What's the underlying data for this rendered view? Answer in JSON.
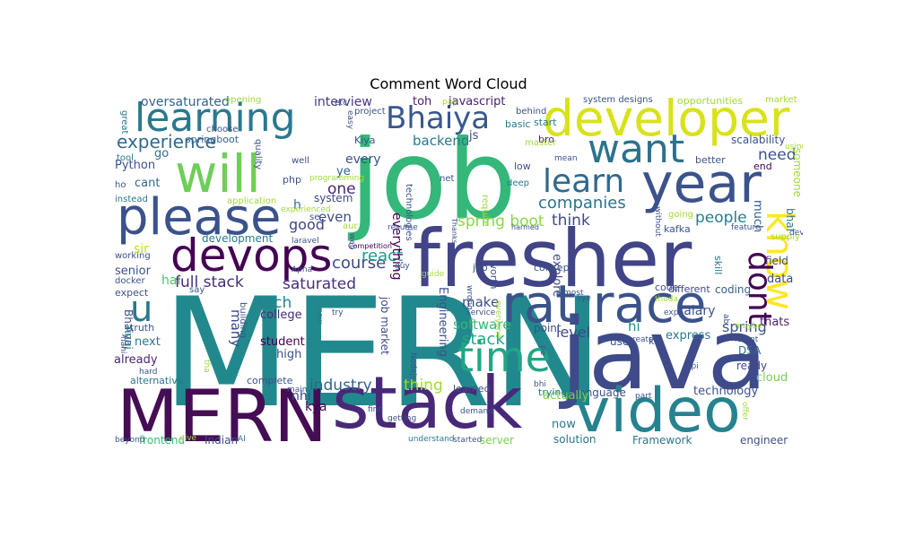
{
  "title": "Comment Word Cloud",
  "words": [
    {
      "text": "MERN",
      "color": "#21898d"
    },
    {
      "text": "job",
      "color": "#35b779"
    },
    {
      "text": "fresher",
      "color": "#414487"
    },
    {
      "text": "java",
      "color": "#3e4a89"
    },
    {
      "text": "stack",
      "color": "#482878"
    },
    {
      "text": "MERN",
      "color": "#440d54"
    },
    {
      "text": "video",
      "color": "#26828e"
    },
    {
      "text": "rat race",
      "color": "#3b528b"
    },
    {
      "text": "year",
      "color": "#3b528b"
    },
    {
      "text": "developer",
      "color": "#d8e219"
    },
    {
      "text": "will",
      "color": "#6ece58"
    },
    {
      "text": "please",
      "color": "#3b528b"
    },
    {
      "text": "devops",
      "color": "#440154"
    },
    {
      "text": "learning",
      "color": "#2a788e"
    },
    {
      "text": "time",
      "color": "#21a685"
    },
    {
      "text": "know",
      "color": "#fde725"
    },
    {
      "text": "dont",
      "color": "#440154"
    },
    {
      "text": "want",
      "color": "#2c728e"
    },
    {
      "text": "Bhaiya",
      "color": "#38588c"
    },
    {
      "text": "learn",
      "color": "#31688e"
    },
    {
      "text": "u",
      "color": "#2a788e"
    },
    {
      "text": "companies",
      "color": "#2c728e"
    },
    {
      "text": "experience",
      "color": "#31688e"
    },
    {
      "text": "course",
      "color": "#3e4989"
    },
    {
      "text": "react",
      "color": "#1f9e89"
    },
    {
      "text": "spring boot",
      "color": "#89d548"
    },
    {
      "text": "full stack",
      "color": "#472d7b"
    },
    {
      "text": "saturated",
      "color": "#472f7d"
    },
    {
      "text": "people",
      "color": "#287c8e"
    },
    {
      "text": "think",
      "color": "#3e4a89"
    },
    {
      "text": "one",
      "color": "#482475"
    },
    {
      "text": "good",
      "color": "#404688"
    },
    {
      "text": "need",
      "color": "#3b528b"
    },
    {
      "text": "tech",
      "color": "#26818e"
    },
    {
      "text": "stack",
      "color": "#22a884"
    },
    {
      "text": "industry",
      "color": "#33638d"
    },
    {
      "text": "thing",
      "color": "#a2da37"
    },
    {
      "text": "level",
      "color": "#3f4788"
    },
    {
      "text": "spring",
      "color": "#3b528b"
    },
    {
      "text": "hi",
      "color": "#23888e"
    },
    {
      "text": "software",
      "color": "#35b779"
    },
    {
      "text": "make",
      "color": "#3e4c8a"
    },
    {
      "text": "backend",
      "color": "#2a788e"
    },
    {
      "text": "interview",
      "color": "#443983"
    },
    {
      "text": "oversaturated",
      "color": "#33638d"
    },
    {
      "text": "javascript",
      "color": "#482374"
    },
    {
      "text": "toh",
      "color": "#481d6f"
    },
    {
      "text": "js",
      "color": "#3f4889"
    },
    {
      "text": "Python",
      "color": "#3b528b"
    },
    {
      "text": "go",
      "color": "#2e6e8e"
    },
    {
      "text": "cant",
      "color": "#31688e"
    },
    {
      "text": "many",
      "color": "#3e4a89"
    },
    {
      "text": "sir",
      "color": "#c2df23"
    },
    {
      "text": "hai",
      "color": "#4ec36b"
    },
    {
      "text": "senior",
      "color": "#3b528b"
    },
    {
      "text": "already",
      "color": "#482576"
    },
    {
      "text": "next",
      "color": "#2a788e"
    },
    {
      "text": "student",
      "color": "#440154"
    },
    {
      "text": "college",
      "color": "#472a7a"
    },
    {
      "text": "high",
      "color": "#3b528b"
    },
    {
      "text": "kya",
      "color": "#440154"
    },
    {
      "text": "nhi",
      "color": "#3e4a89"
    },
    {
      "text": "now",
      "color": "#2a778e"
    },
    {
      "text": "solution",
      "color": "#2a768e"
    },
    {
      "text": "technology",
      "color": "#3b528b"
    },
    {
      "text": "cloud",
      "color": "#7ad151"
    },
    {
      "text": "salary",
      "color": "#3b528b"
    },
    {
      "text": "data",
      "color": "#3e4a89"
    },
    {
      "text": "thats",
      "color": "#482374"
    },
    {
      "text": "DSA",
      "color": "#31688e"
    },
    {
      "text": "express",
      "color": "#2a788e"
    },
    {
      "text": "ready",
      "color": "#3e4a89"
    },
    {
      "text": "coding",
      "color": "#33638d"
    },
    {
      "text": "field",
      "color": "#3f4889"
    },
    {
      "text": "much",
      "color": "#33638d"
    },
    {
      "text": "bhai",
      "color": "#2a788e"
    },
    {
      "text": "everything",
      "color": "#440154"
    },
    {
      "text": "even",
      "color": "#3e4a89"
    },
    {
      "text": "every",
      "color": "#3b528b"
    },
    {
      "text": "ye",
      "color": "#33638d"
    },
    {
      "text": "h",
      "color": "#2c728e"
    },
    {
      "text": "development",
      "color": "#2a788e"
    },
    {
      "text": "explore",
      "color": "#3e4a89"
    },
    {
      "text": "Engineering",
      "color": "#3b528b"
    },
    {
      "text": "job market",
      "color": "#3e4a89"
    },
    {
      "text": "Bhaiya",
      "color": "#3b528b"
    },
    {
      "text": "Anuj",
      "color": "#2a788e"
    },
    {
      "text": "language",
      "color": "#3b528b"
    },
    {
      "text": "Framework",
      "color": "#2a788e"
    },
    {
      "text": "frontend",
      "color": "#3dbc74"
    },
    {
      "text": "Indian",
      "color": "#3e4a89"
    },
    {
      "text": "server",
      "color": "#7ad151"
    },
    {
      "text": "engineer",
      "color": "#3b528b"
    },
    {
      "text": "end",
      "color": "#440154"
    },
    {
      "text": "better",
      "color": "#3b528b"
    },
    {
      "text": "scalability",
      "color": "#3b528b"
    },
    {
      "text": "someone",
      "color": "#a2da37"
    },
    {
      "text": "system",
      "color": "#3e4a89"
    },
    {
      "text": "Kiya",
      "color": "#3b528b"
    },
    {
      "text": "springboot",
      "color": "#33638d"
    },
    {
      "text": "php",
      "color": "#3b528b"
    },
    {
      "text": "basic",
      "color": "#2a788e"
    },
    {
      "text": "bro",
      "color": "#482374"
    },
    {
      "text": "start",
      "color": "#2a788e"
    },
    {
      "text": "low",
      "color": "#3b528b"
    },
    {
      "text": "kafka",
      "color": "#3b528b"
    },
    {
      "text": "skill",
      "color": "#2c728e"
    },
    {
      "text": "code",
      "color": "#3b528b"
    },
    {
      "text": "different",
      "color": "#3e4a89"
    },
    {
      "text": "concept",
      "color": "#3b528b"
    },
    {
      "text": "worth",
      "color": "#3b528b"
    },
    {
      "text": "jab",
      "color": "#3b528b"
    },
    {
      "text": "point",
      "color": "#3b528b"
    },
    {
      "text": "use",
      "color": "#3b528b"
    },
    {
      "text": "ko",
      "color": "#3b528b"
    },
    {
      "text": "actually",
      "color": "#7ad151"
    },
    {
      "text": "learned",
      "color": "#3b528b"
    },
    {
      "text": "trying",
      "color": "#2a788e"
    },
    {
      "text": "complete",
      "color": "#3b528b"
    },
    {
      "text": "alternative",
      "color": "#2a788e"
    },
    {
      "text": "truth",
      "color": "#3b528b"
    },
    {
      "text": "expect",
      "color": "#3b528b"
    },
    {
      "text": "opportunities",
      "color": "#a2da37"
    },
    {
      "text": "system designs",
      "color": "#3b528b"
    },
    {
      "text": "market",
      "color": "#a2da37"
    },
    {
      "text": "opening",
      "color": "#a2da37"
    },
    {
      "text": "project",
      "color": "#3b528b"
    },
    {
      "text": "behind",
      "color": "#3b528b"
    },
    {
      "text": "master",
      "color": "#a2da37"
    },
    {
      "text": "mean",
      "color": "#3b528b"
    },
    {
      "text": "quality",
      "color": "#3b528b"
    },
    {
      "text": "choose",
      "color": "#3b528b"
    },
    {
      "text": "tool",
      "color": "#2a788e"
    },
    {
      "text": "great",
      "color": "#2a788e"
    },
    {
      "text": "ho",
      "color": "#3b528b"
    },
    {
      "text": "instead",
      "color": "#2a788e"
    },
    {
      "text": "application",
      "color": "#a2da37"
    },
    {
      "text": "programming",
      "color": "#a2da37"
    },
    {
      "text": "well",
      "color": "#3b528b"
    },
    {
      "text": "net",
      "color": "#3b528b"
    },
    {
      "text": "deep",
      "color": "#2a788e"
    },
    {
      "text": "require",
      "color": "#a2da37"
    },
    {
      "text": "technologies",
      "color": "#3b528b"
    },
    {
      "text": "aur",
      "color": "#a2da37"
    },
    {
      "text": "se",
      "color": "#3b528b"
    },
    {
      "text": "laravel",
      "color": "#3b528b"
    },
    {
      "text": "resume",
      "color": "#3b528b"
    },
    {
      "text": "Competition",
      "color": "#440154"
    },
    {
      "text": "Thanks",
      "color": "#3b528b"
    },
    {
      "text": "harmed",
      "color": "#3b528b"
    },
    {
      "text": "going",
      "color": "#a2da37"
    },
    {
      "text": "feature",
      "color": "#3b528b"
    },
    {
      "text": "supply",
      "color": "#a2da37"
    },
    {
      "text": "working",
      "color": "#3b528b"
    },
    {
      "text": "docker",
      "color": "#3b528b"
    },
    {
      "text": "say",
      "color": "#3b528b"
    },
    {
      "text": "building",
      "color": "#3b528b"
    },
    {
      "text": "Apna",
      "color": "#3b528b"
    },
    {
      "text": "guy",
      "color": "#3b528b"
    },
    {
      "text": "guide",
      "color": "#a2da37"
    },
    {
      "text": "wrong",
      "color": "#3b528b"
    },
    {
      "text": "service",
      "color": "#3b528b"
    },
    {
      "text": "try",
      "color": "#3b528b"
    },
    {
      "text": "new",
      "color": "#2a788e"
    },
    {
      "text": "almost",
      "color": "#3b528b"
    },
    {
      "text": "liye",
      "color": "#3b528b"
    },
    {
      "text": "thoda",
      "color": "#a2da37"
    },
    {
      "text": "exp",
      "color": "#3b528b"
    },
    {
      "text": "create",
      "color": "#3b528b"
    },
    {
      "text": "learnt",
      "color": "#3b528b"
    },
    {
      "text": "maybe",
      "color": "#a2da37"
    },
    {
      "text": "ab",
      "color": "#3b528b"
    },
    {
      "text": "api",
      "color": "#3b528b"
    },
    {
      "text": "part",
      "color": "#3b528b"
    },
    {
      "text": "offer",
      "color": "#a2da37"
    },
    {
      "text": "Nodejs",
      "color": "#3b528b"
    },
    {
      "text": "main",
      "color": "#3b528b"
    },
    {
      "text": "find",
      "color": "#3b528b"
    },
    {
      "text": "getting",
      "color": "#3b528b"
    },
    {
      "text": "demand",
      "color": "#3b528b"
    },
    {
      "text": "understand",
      "color": "#2a788e"
    },
    {
      "text": "started",
      "color": "#3b528b"
    },
    {
      "text": "AI",
      "color": "#2a788e"
    },
    {
      "text": "beyond",
      "color": "#3b528b"
    },
    {
      "text": "give",
      "color": "#a2da37"
    },
    {
      "text": "tha",
      "color": "#a2da37"
    },
    {
      "text": "hard",
      "color": "#3b528b"
    },
    {
      "text": "using",
      "color": "#a2da37"
    },
    {
      "text": "dev",
      "color": "#3b528b"
    },
    {
      "text": "etc",
      "color": "#3b528b"
    },
    {
      "text": "easy",
      "color": "#3b528b"
    },
    {
      "text": "experienced",
      "color": "#a2da37"
    },
    {
      "text": "everyone",
      "color": "#a2da37"
    },
    {
      "text": "pe",
      "color": "#3b528b"
    },
    {
      "text": "bhi",
      "color": "#3b528b"
    },
    {
      "text": "pay",
      "color": "#a2da37"
    },
    {
      "text": "web",
      "color": "#3b528b"
    },
    {
      "text": "without",
      "color": "#3b528b"
    },
    {
      "text": "nahi",
      "color": "#3b528b"
    }
  ]
}
